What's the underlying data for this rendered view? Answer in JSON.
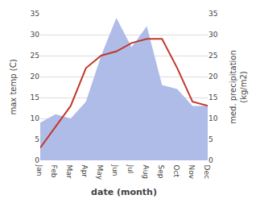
{
  "chart_data": {
    "type": "line",
    "xlabel": "date (month)",
    "ylabel": "max temp (C)",
    "y2label": "med. precipitation\n(kg/m2)",
    "categories": [
      "Jan",
      "Feb",
      "Mar",
      "Apr",
      "May",
      "Jun",
      "Jul",
      "Aug",
      "Sep",
      "Oct",
      "Nov",
      "Dec"
    ],
    "series": [
      {
        "type": "area",
        "color": "#b0bce8",
        "axis": "y2",
        "values": [
          9,
          11,
          10,
          14,
          25,
          34,
          27,
          32,
          18,
          17,
          13,
          13
        ]
      },
      {
        "type": "line",
        "color": "#c0392b",
        "values": [
          3,
          8,
          13,
          22,
          25,
          26,
          28,
          29,
          29,
          22,
          14,
          13
        ]
      }
    ],
    "ylim": [
      0,
      35
    ],
    "yticks": [
      0,
      5,
      10,
      15,
      20,
      25,
      30,
      35
    ],
    "y2lim": [
      0,
      35
    ],
    "y2ticks": [
      0,
      5,
      10,
      15,
      20,
      25,
      30,
      35
    ],
    "grid": true
  }
}
